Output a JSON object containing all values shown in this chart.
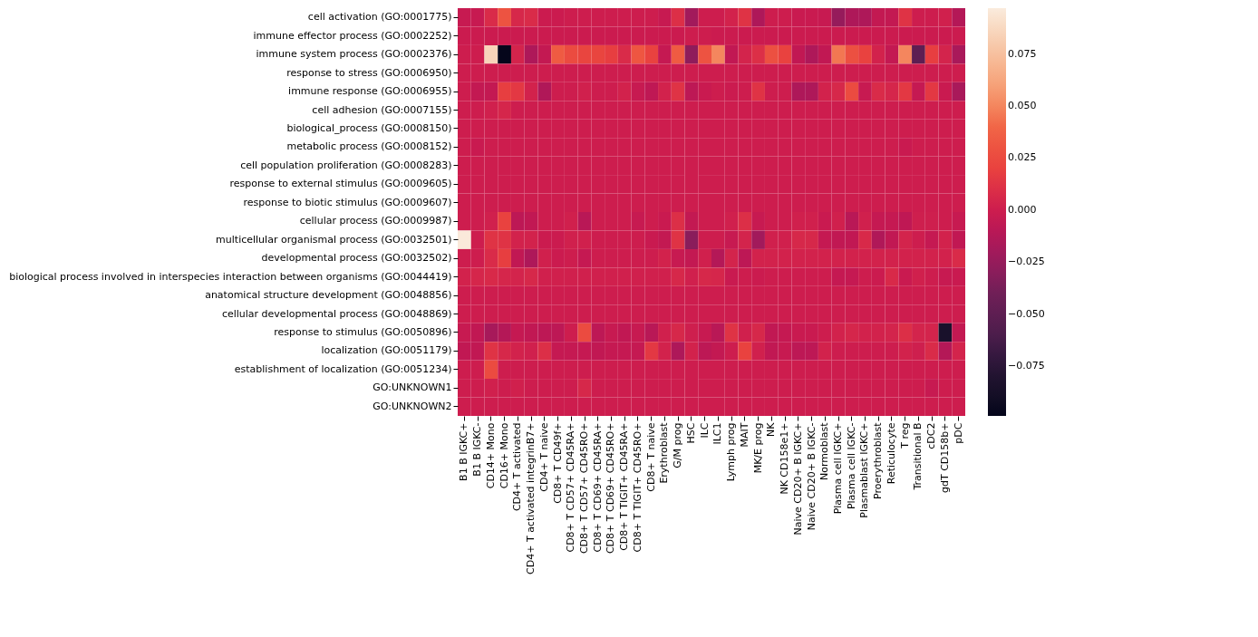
{
  "chart_data": {
    "type": "heatmap",
    "categories": [
      "B1 B IGKC+",
      "B1 B IGKC-",
      "CD14+ Mono",
      "CD16+ Mono",
      "CD4+ T activated",
      "CD4+ T activated integrinB7+",
      "CD4+ T naive",
      "CD8+ T CD49f+",
      "CD8+ T CD57+ CD45RA+",
      "CD8+ T CD57+ CD45RO+",
      "CD8+ T CD69+ CD45RA+",
      "CD8+ T CD69+ CD45RO+",
      "CD8+ T TIGIT+ CD45RA+",
      "CD8+ T TIGIT+ CD45RO+",
      "CD8+ T naive",
      "Erythroblast",
      "G/M prog",
      "HSC",
      "ILC",
      "ILC1",
      "Lymph prog",
      "MAIT",
      "MK/E prog",
      "NK",
      "NK CD158e1+",
      "Naive CD20+ B IGKC+",
      "Naive CD20+ B IGKC-",
      "Normoblast",
      "Plasma cell IGKC+",
      "Plasma cell IGKC-",
      "Plasmablast IGKC+",
      "Proerythroblast",
      "Reticulocyte",
      "T reg",
      "Transitional B",
      "cDC2",
      "gdT CD158b+",
      "pDC"
    ],
    "y_categories": [
      "cell activation (GO:0001775)",
      "immune effector process (GO:0002252)",
      "immune system process (GO:0002376)",
      "response to stress (GO:0006950)",
      "immune response (GO:0006955)",
      "cell adhesion (GO:0007155)",
      "biological_process (GO:0008150)",
      "metabolic process (GO:0008152)",
      "cell population proliferation (GO:0008283)",
      "response to external stimulus (GO:0009605)",
      "response to biotic stimulus (GO:0009607)",
      "cellular process (GO:0009987)",
      "multicellular organismal process (GO:0032501)",
      "developmental process (GO:0032502)",
      "biological process involved in interspecies interaction between organisms (GO:0044419)",
      "anatomical structure development (GO:0048856)",
      "cellular developmental process (GO:0048869)",
      "response to stimulus (GO:0050896)",
      "localization (GO:0051179)",
      "establishment of localization (GO:0051234)",
      "GO:UNKNOWN1",
      "GO:UNKNOWN2"
    ],
    "cells": [
      [
        -0.003,
        -0.003,
        0.008,
        0.03,
        0.006,
        0.008,
        -0.001,
        -0.001,
        0,
        0,
        0,
        0,
        0,
        0,
        0,
        -0.003,
        0.01,
        -0.02,
        0,
        0,
        0.003,
        0.012,
        -0.015,
        0,
        0,
        -0.002,
        -0.002,
        -0.003,
        -0.025,
        -0.015,
        -0.015,
        -0.005,
        -0.005,
        0.012,
        0,
        0,
        0.002,
        -0.012
      ],
      [
        -0.001,
        -0.001,
        -0.001,
        -0.001,
        -0.001,
        -0.001,
        -0.001,
        -0.001,
        -0.001,
        -0.001,
        -0.001,
        -0.001,
        -0.001,
        -0.001,
        -0.001,
        -0.001,
        -0.001,
        0,
        0,
        -0.001,
        -0.001,
        -0.001,
        -0.001,
        -0.001,
        -0.001,
        -0.001,
        -0.001,
        -0.001,
        -0.001,
        -0.001,
        -0.001,
        -0.001,
        -0.001,
        -0.001,
        -0.001,
        -0.001,
        -0.001,
        -0.001
      ],
      [
        0,
        0,
        0.085,
        -0.098,
        0.004,
        -0.015,
        -0.005,
        0.035,
        0.025,
        0.022,
        0.022,
        0.018,
        0.008,
        0.032,
        0.02,
        -0.004,
        0.035,
        -0.028,
        0.03,
        0.05,
        -0.006,
        0.004,
        0.01,
        0.028,
        0.02,
        -0.006,
        -0.015,
        -0.006,
        0.045,
        0.028,
        0.02,
        0.003,
        -0.005,
        0.05,
        -0.05,
        0.018,
        0.004,
        -0.017
      ],
      [
        0,
        0,
        0,
        0,
        0,
        0,
        0,
        0,
        0,
        0,
        0,
        0,
        0,
        0,
        0,
        0,
        0,
        0,
        0,
        0,
        0,
        0,
        0,
        0,
        0,
        0,
        0,
        0,
        0,
        0,
        0,
        0,
        0,
        0,
        0,
        0,
        0,
        0
      ],
      [
        0,
        -0.005,
        -0.005,
        0.018,
        0.015,
        0.003,
        -0.014,
        0,
        0,
        0.002,
        0,
        0,
        0.003,
        -0.003,
        -0.007,
        0.003,
        0.012,
        -0.008,
        -0.002,
        0,
        -0.001,
        0,
        0.012,
        0,
        0,
        -0.015,
        -0.015,
        0.003,
        0.006,
        0.025,
        -0.003,
        0.008,
        0.005,
        0.015,
        -0.004,
        0.015,
        -0.002,
        -0.017
      ],
      [
        0,
        0,
        0.002,
        0.005,
        0,
        0,
        0,
        0,
        0,
        0,
        0,
        0,
        0,
        0,
        0,
        0,
        0,
        0,
        0,
        0,
        0,
        0,
        0,
        0,
        0,
        0,
        0,
        0,
        0,
        0,
        0,
        0,
        0,
        0,
        0,
        0,
        0,
        0
      ],
      [
        0,
        0,
        0,
        0,
        0,
        0,
        0,
        0,
        0,
        0,
        0,
        0,
        0,
        0,
        0,
        0,
        0,
        0,
        0,
        0,
        0,
        0,
        0,
        0,
        0,
        0,
        0,
        0,
        0,
        0,
        0,
        0,
        0,
        0,
        0,
        0,
        0,
        0
      ],
      [
        0,
        -0.002,
        0,
        0,
        0,
        0,
        0,
        0,
        0,
        0,
        0,
        0,
        0,
        0,
        0,
        0,
        0,
        0,
        0,
        0,
        0,
        0,
        0,
        0,
        0,
        0,
        0,
        0,
        0,
        0,
        0,
        0,
        0,
        -0.002,
        0,
        0,
        0,
        0
      ],
      [
        0,
        0,
        0,
        0,
        0,
        0,
        0,
        0,
        0,
        0,
        0,
        0,
        0,
        0,
        0,
        0,
        0,
        0,
        0,
        0,
        0,
        0,
        0,
        0,
        0,
        0,
        0,
        0,
        0,
        0,
        0,
        0,
        0,
        0,
        0,
        0,
        0,
        0
      ],
      [
        0,
        0,
        0,
        0,
        0,
        0,
        0,
        0,
        0,
        0,
        0,
        0,
        0,
        0,
        0,
        0,
        0,
        0,
        0,
        0,
        0,
        0,
        0,
        0,
        0,
        0,
        0,
        0,
        0,
        0,
        0,
        0,
        0,
        0,
        0,
        0,
        0,
        0
      ],
      [
        0,
        0,
        0,
        0,
        0,
        0,
        0,
        0,
        0,
        0,
        0,
        0,
        0,
        0,
        0,
        0,
        0,
        0,
        0,
        0,
        0,
        0,
        0,
        0,
        0,
        0,
        0,
        0,
        0,
        0,
        0,
        0,
        0,
        0,
        0,
        0,
        0,
        0
      ],
      [
        0,
        0,
        0.002,
        0.02,
        -0.008,
        -0.006,
        0,
        0,
        0.002,
        -0.01,
        0,
        0,
        0,
        -0.003,
        0,
        -0.002,
        0.01,
        -0.005,
        0,
        0,
        0.002,
        0.01,
        -0.003,
        0,
        0,
        0.002,
        0.002,
        -0.002,
        0.002,
        -0.01,
        0.002,
        -0.004,
        -0.004,
        -0.007,
        0.001,
        0.001,
        0,
        -0.003
      ],
      [
        0.096,
        0,
        0.012,
        0.012,
        0.003,
        0.003,
        -0.001,
        -0.001,
        0.002,
        0.002,
        0,
        0,
        0,
        0,
        -0.002,
        -0.005,
        0.012,
        -0.03,
        0,
        0,
        -0.003,
        0.004,
        -0.02,
        0.002,
        0.002,
        0.006,
        0.006,
        -0.004,
        -0.006,
        -0.006,
        0.007,
        -0.014,
        -0.006,
        0.004,
        0,
        -0.004,
        0.003,
        -0.006
      ],
      [
        0,
        0,
        0.008,
        0.018,
        -0.006,
        -0.015,
        0.002,
        -0.001,
        0,
        -0.004,
        0,
        0,
        0,
        0,
        0,
        0.003,
        -0.003,
        -0.005,
        0.002,
        -0.012,
        0.004,
        -0.008,
        0.003,
        0.003,
        0.003,
        0.003,
        0.003,
        0.003,
        0.003,
        0.003,
        0.003,
        0.003,
        0.003,
        0.003,
        0.003,
        0.003,
        0.003,
        0.008
      ],
      [
        0.003,
        0.005,
        0.007,
        0.005,
        0.004,
        0.006,
        0.002,
        0.002,
        0.002,
        0.002,
        0.002,
        0.002,
        0.002,
        0.002,
        0.002,
        0.002,
        0.006,
        0.002,
        0.006,
        0.005,
        -0.002,
        0,
        -0.001,
        0,
        0,
        0,
        0,
        0,
        -0.004,
        -0.004,
        0,
        -0.001,
        0.007,
        -0.002,
        0.002,
        0,
        -0.003,
        -0.002
      ],
      [
        0,
        0,
        0,
        0,
        0,
        0,
        0,
        0,
        0,
        0,
        0,
        0,
        0,
        0,
        0,
        0,
        0,
        0,
        0,
        0,
        0,
        0,
        0,
        0,
        0,
        0,
        0,
        0,
        0,
        0,
        0,
        0,
        0,
        0,
        0,
        0,
        0,
        0
      ],
      [
        0,
        0,
        0,
        0,
        0,
        0,
        0,
        0,
        0,
        0,
        0,
        0,
        0,
        0,
        0,
        0,
        0,
        0,
        0,
        0,
        0,
        0,
        0,
        0,
        0,
        0,
        0,
        0,
        0,
        0,
        0,
        0,
        0,
        0,
        0,
        0,
        0,
        0
      ],
      [
        -0.003,
        -0.006,
        -0.018,
        -0.012,
        -0.004,
        -0.006,
        -0.008,
        -0.008,
        0,
        0.025,
        -0.008,
        -0.003,
        -0.006,
        -0.003,
        -0.01,
        0.002,
        0.006,
        0.001,
        -0.003,
        -0.01,
        0.012,
        0.002,
        0.006,
        -0.006,
        -0.004,
        -0.002,
        -0.002,
        0,
        0.003,
        0.005,
        0.003,
        0.003,
        0.004,
        0.01,
        0.004,
        0.004,
        -0.085,
        -0.005
      ],
      [
        -0.006,
        -0.006,
        0.012,
        0.006,
        0.003,
        0.002,
        0.01,
        -0.004,
        -0.004,
        -0.004,
        -0.006,
        -0.004,
        -0.004,
        -0.004,
        0.015,
        0.003,
        -0.015,
        0.003,
        -0.008,
        -0.005,
        0,
        0.02,
        0.002,
        -0.006,
        -0.003,
        -0.008,
        -0.008,
        0.003,
        0,
        0,
        0,
        0,
        0,
        0.003,
        0.001,
        0.008,
        -0.012,
        0.004
      ],
      [
        0,
        0,
        0.025,
        0,
        0,
        0,
        0,
        0,
        0,
        0,
        0,
        0,
        0,
        0,
        0,
        0,
        0,
        0,
        0,
        0,
        0,
        0,
        0,
        0,
        0,
        0,
        0,
        0,
        0,
        0,
        0,
        0,
        0,
        0,
        0,
        0,
        0,
        0
      ],
      [
        0,
        0,
        0.002,
        0,
        0.002,
        0,
        0,
        0,
        0,
        0.006,
        0,
        0,
        0,
        0,
        0,
        0,
        0,
        0,
        0,
        0,
        0,
        0,
        0,
        0,
        0,
        0,
        0,
        0,
        0,
        0,
        0,
        0,
        0,
        0,
        0,
        -0.003,
        0,
        0
      ],
      [
        0,
        0,
        0,
        0,
        0,
        0,
        0,
        0,
        0,
        0,
        0,
        0,
        0,
        0,
        0,
        0,
        0,
        0,
        0,
        0,
        0,
        0,
        0,
        0,
        0,
        0,
        0,
        0,
        0,
        0,
        0,
        0,
        0,
        0,
        0,
        0,
        0,
        0
      ]
    ],
    "clim": [
      -0.099,
      0.097
    ],
    "cticks": [
      {
        "value": -0.075,
        "label": "−0.075"
      },
      {
        "value": -0.05,
        "label": "−0.050"
      },
      {
        "value": -0.025,
        "label": "−0.025"
      },
      {
        "value": 0,
        "label": "0.000"
      },
      {
        "value": 0.025,
        "label": "0.025"
      },
      {
        "value": 0.05,
        "label": "0.050"
      },
      {
        "value": 0.075,
        "label": "0.075"
      }
    ]
  }
}
